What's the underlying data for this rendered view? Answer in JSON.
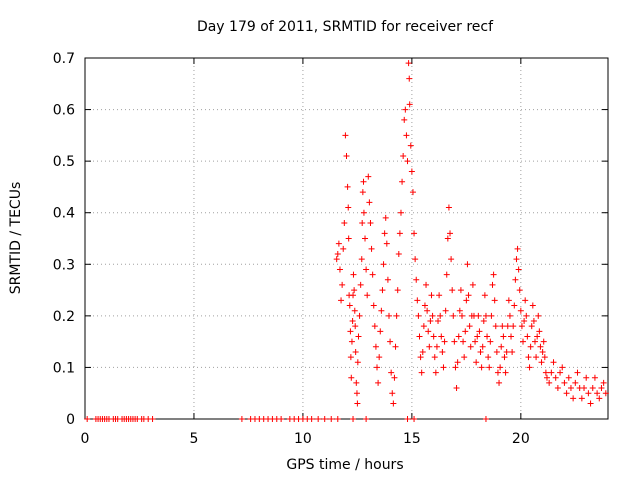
{
  "chart_data": {
    "type": "scatter",
    "title": "Day 179 of 2011, SRMTID for receiver recf",
    "xlabel": "GPS time / hours",
    "ylabel": "SRMTID / TECUs",
    "xlim": [
      0,
      24
    ],
    "ylim": [
      0,
      0.7
    ],
    "xticks": [
      "0",
      "5",
      "10",
      "15",
      "20"
    ],
    "xtick_values": [
      0,
      5,
      10,
      15,
      20
    ],
    "yticks": [
      "0",
      "0.1",
      "0.2",
      "0.3",
      "0.4",
      "0.5",
      "0.6",
      "0.7"
    ],
    "ytick_values": [
      0,
      0.1,
      0.2,
      0.3,
      0.4,
      0.5,
      0.6,
      0.7
    ],
    "grid": true,
    "marker": "+",
    "series": [
      {
        "name": "SRMTID",
        "color": "#ff0000",
        "points": [
          [
            0.1,
            0.0
          ],
          [
            0.5,
            0.0
          ],
          [
            0.6,
            0.0
          ],
          [
            0.7,
            0.0
          ],
          [
            0.8,
            0.0
          ],
          [
            0.9,
            0.0
          ],
          [
            1.0,
            0.0
          ],
          [
            1.1,
            0.0
          ],
          [
            1.3,
            0.0
          ],
          [
            1.4,
            0.0
          ],
          [
            1.5,
            0.0
          ],
          [
            1.7,
            0.0
          ],
          [
            1.8,
            0.0
          ],
          [
            1.9,
            0.0
          ],
          [
            2.0,
            0.0
          ],
          [
            2.1,
            0.0
          ],
          [
            2.2,
            0.0
          ],
          [
            2.3,
            0.0
          ],
          [
            2.4,
            0.0
          ],
          [
            2.6,
            0.0
          ],
          [
            2.7,
            0.0
          ],
          [
            2.9,
            0.0
          ],
          [
            3.1,
            0.0
          ],
          [
            7.2,
            0.0
          ],
          [
            7.6,
            0.0
          ],
          [
            7.8,
            0.0
          ],
          [
            8.0,
            0.0
          ],
          [
            8.2,
            0.0
          ],
          [
            8.4,
            0.0
          ],
          [
            8.6,
            0.0
          ],
          [
            8.8,
            0.0
          ],
          [
            9.0,
            0.0
          ],
          [
            9.4,
            0.0
          ],
          [
            9.6,
            0.0
          ],
          [
            9.8,
            0.0
          ],
          [
            10.0,
            0.0
          ],
          [
            10.2,
            0.0
          ],
          [
            10.4,
            0.0
          ],
          [
            10.7,
            0.0
          ],
          [
            11.0,
            0.0
          ],
          [
            11.3,
            0.0
          ],
          [
            11.6,
            0.0
          ],
          [
            12.3,
            0.0
          ],
          [
            12.9,
            0.0
          ],
          [
            14.8,
            0.0
          ],
          [
            15.1,
            0.0
          ],
          [
            18.4,
            0.0
          ],
          [
            11.55,
            0.31
          ],
          [
            11.6,
            0.32
          ],
          [
            11.65,
            0.34
          ],
          [
            11.7,
            0.29
          ],
          [
            11.75,
            0.23
          ],
          [
            11.8,
            0.26
          ],
          [
            11.85,
            0.33
          ],
          [
            11.9,
            0.38
          ],
          [
            11.95,
            0.55
          ],
          [
            12.0,
            0.51
          ],
          [
            12.05,
            0.45
          ],
          [
            12.08,
            0.41
          ],
          [
            12.1,
            0.35
          ],
          [
            12.12,
            0.24
          ],
          [
            12.15,
            0.22
          ],
          [
            12.18,
            0.17
          ],
          [
            12.2,
            0.12
          ],
          [
            12.22,
            0.08
          ],
          [
            12.25,
            0.15
          ],
          [
            12.28,
            0.19
          ],
          [
            12.3,
            0.24
          ],
          [
            12.32,
            0.28
          ],
          [
            12.35,
            0.25
          ],
          [
            12.38,
            0.21
          ],
          [
            12.4,
            0.18
          ],
          [
            12.42,
            0.13
          ],
          [
            12.45,
            0.07
          ],
          [
            12.48,
            0.05
          ],
          [
            12.5,
            0.03
          ],
          [
            12.52,
            0.11
          ],
          [
            12.55,
            0.16
          ],
          [
            12.6,
            0.2
          ],
          [
            12.65,
            0.26
          ],
          [
            12.7,
            0.31
          ],
          [
            12.72,
            0.38
          ],
          [
            12.75,
            0.44
          ],
          [
            12.78,
            0.46
          ],
          [
            12.8,
            0.4
          ],
          [
            12.85,
            0.35
          ],
          [
            12.9,
            0.29
          ],
          [
            12.95,
            0.24
          ],
          [
            13.0,
            0.47
          ],
          [
            13.05,
            0.42
          ],
          [
            13.1,
            0.38
          ],
          [
            13.15,
            0.33
          ],
          [
            13.2,
            0.28
          ],
          [
            13.25,
            0.22
          ],
          [
            13.3,
            0.18
          ],
          [
            13.35,
            0.14
          ],
          [
            13.4,
            0.1
          ],
          [
            13.45,
            0.07
          ],
          [
            13.5,
            0.12
          ],
          [
            13.55,
            0.17
          ],
          [
            13.6,
            0.21
          ],
          [
            13.65,
            0.25
          ],
          [
            13.7,
            0.3
          ],
          [
            13.75,
            0.36
          ],
          [
            13.8,
            0.39
          ],
          [
            13.85,
            0.34
          ],
          [
            13.9,
            0.27
          ],
          [
            13.95,
            0.2
          ],
          [
            14.0,
            0.15
          ],
          [
            14.05,
            0.09
          ],
          [
            14.1,
            0.05
          ],
          [
            14.15,
            0.03
          ],
          [
            14.2,
            0.08
          ],
          [
            14.25,
            0.14
          ],
          [
            14.3,
            0.2
          ],
          [
            14.35,
            0.25
          ],
          [
            14.4,
            0.32
          ],
          [
            14.45,
            0.36
          ],
          [
            14.5,
            0.4
          ],
          [
            14.55,
            0.46
          ],
          [
            14.6,
            0.51
          ],
          [
            14.65,
            0.58
          ],
          [
            14.7,
            0.6
          ],
          [
            14.75,
            0.55
          ],
          [
            14.8,
            0.5
          ],
          [
            14.85,
            0.69
          ],
          [
            14.88,
            0.66
          ],
          [
            14.9,
            0.61
          ],
          [
            14.95,
            0.53
          ],
          [
            15.0,
            0.48
          ],
          [
            15.05,
            0.44
          ],
          [
            15.1,
            0.36
          ],
          [
            15.15,
            0.31
          ],
          [
            15.2,
            0.27
          ],
          [
            15.25,
            0.23
          ],
          [
            15.3,
            0.2
          ],
          [
            15.35,
            0.16
          ],
          [
            15.4,
            0.12
          ],
          [
            15.45,
            0.09
          ],
          [
            15.5,
            0.13
          ],
          [
            15.55,
            0.18
          ],
          [
            15.6,
            0.22
          ],
          [
            15.65,
            0.26
          ],
          [
            15.7,
            0.21
          ],
          [
            15.75,
            0.17
          ],
          [
            15.8,
            0.14
          ],
          [
            15.85,
            0.19
          ],
          [
            15.9,
            0.24
          ],
          [
            15.95,
            0.2
          ],
          [
            16.0,
            0.16
          ],
          [
            16.05,
            0.12
          ],
          [
            16.1,
            0.09
          ],
          [
            16.15,
            0.14
          ],
          [
            16.2,
            0.19
          ],
          [
            16.25,
            0.24
          ],
          [
            16.3,
            0.2
          ],
          [
            16.35,
            0.16
          ],
          [
            16.4,
            0.13
          ],
          [
            16.45,
            0.1
          ],
          [
            16.5,
            0.15
          ],
          [
            16.55,
            0.21
          ],
          [
            16.6,
            0.28
          ],
          [
            16.65,
            0.35
          ],
          [
            16.7,
            0.41
          ],
          [
            16.75,
            0.36
          ],
          [
            16.8,
            0.31
          ],
          [
            16.85,
            0.25
          ],
          [
            16.9,
            0.2
          ],
          [
            16.95,
            0.15
          ],
          [
            17.0,
            0.1
          ],
          [
            17.05,
            0.06
          ],
          [
            17.1,
            0.11
          ],
          [
            17.15,
            0.16
          ],
          [
            17.2,
            0.21
          ],
          [
            17.25,
            0.25
          ],
          [
            17.3,
            0.2
          ],
          [
            17.35,
            0.15
          ],
          [
            17.4,
            0.12
          ],
          [
            17.45,
            0.17
          ],
          [
            17.5,
            0.23
          ],
          [
            17.55,
            0.3
          ],
          [
            17.6,
            0.24
          ],
          [
            17.65,
            0.18
          ],
          [
            17.7,
            0.14
          ],
          [
            17.75,
            0.2
          ],
          [
            17.8,
            0.26
          ],
          [
            17.85,
            0.2
          ],
          [
            17.9,
            0.15
          ],
          [
            17.95,
            0.11
          ],
          [
            18.0,
            0.16
          ],
          [
            18.05,
            0.2
          ],
          [
            18.1,
            0.17
          ],
          [
            18.15,
            0.13
          ],
          [
            18.2,
            0.1
          ],
          [
            18.25,
            0.14
          ],
          [
            18.3,
            0.19
          ],
          [
            18.35,
            0.24
          ],
          [
            18.4,
            0.2
          ],
          [
            18.45,
            0.16
          ],
          [
            18.5,
            0.12
          ],
          [
            18.55,
            0.1
          ],
          [
            18.6,
            0.15
          ],
          [
            18.65,
            0.2
          ],
          [
            18.7,
            0.26
          ],
          [
            18.75,
            0.28
          ],
          [
            18.8,
            0.23
          ],
          [
            18.85,
            0.18
          ],
          [
            18.9,
            0.13
          ],
          [
            18.95,
            0.09
          ],
          [
            19.0,
            0.07
          ],
          [
            19.05,
            0.1
          ],
          [
            19.1,
            0.14
          ],
          [
            19.15,
            0.18
          ],
          [
            19.2,
            0.16
          ],
          [
            19.25,
            0.12
          ],
          [
            19.3,
            0.09
          ],
          [
            19.35,
            0.13
          ],
          [
            19.4,
            0.18
          ],
          [
            19.45,
            0.23
          ],
          [
            19.5,
            0.2
          ],
          [
            19.55,
            0.16
          ],
          [
            19.6,
            0.13
          ],
          [
            19.65,
            0.18
          ],
          [
            19.7,
            0.22
          ],
          [
            19.75,
            0.27
          ],
          [
            19.8,
            0.31
          ],
          [
            19.85,
            0.33
          ],
          [
            19.9,
            0.29
          ],
          [
            19.95,
            0.25
          ],
          [
            20.0,
            0.21
          ],
          [
            20.05,
            0.18
          ],
          [
            20.1,
            0.15
          ],
          [
            20.15,
            0.19
          ],
          [
            20.2,
            0.23
          ],
          [
            20.25,
            0.2
          ],
          [
            20.3,
            0.16
          ],
          [
            20.35,
            0.12
          ],
          [
            20.4,
            0.1
          ],
          [
            20.45,
            0.14
          ],
          [
            20.5,
            0.18
          ],
          [
            20.55,
            0.22
          ],
          [
            20.6,
            0.19
          ],
          [
            20.65,
            0.15
          ],
          [
            20.7,
            0.12
          ],
          [
            20.75,
            0.16
          ],
          [
            20.8,
            0.2
          ],
          [
            20.85,
            0.17
          ],
          [
            20.9,
            0.14
          ],
          [
            20.95,
            0.11
          ],
          [
            21.0,
            0.13
          ],
          [
            21.05,
            0.15
          ],
          [
            21.1,
            0.12
          ],
          [
            21.15,
            0.09
          ],
          [
            21.2,
            0.08
          ],
          [
            21.3,
            0.07
          ],
          [
            21.4,
            0.09
          ],
          [
            21.5,
            0.11
          ],
          [
            21.6,
            0.08
          ],
          [
            21.7,
            0.06
          ],
          [
            21.8,
            0.09
          ],
          [
            21.9,
            0.1
          ],
          [
            22.0,
            0.07
          ],
          [
            22.1,
            0.05
          ],
          [
            22.2,
            0.08
          ],
          [
            22.3,
            0.06
          ],
          [
            22.4,
            0.04
          ],
          [
            22.5,
            0.07
          ],
          [
            22.6,
            0.09
          ],
          [
            22.7,
            0.06
          ],
          [
            22.8,
            0.04
          ],
          [
            22.9,
            0.06
          ],
          [
            23.0,
            0.08
          ],
          [
            23.1,
            0.05
          ],
          [
            23.2,
            0.03
          ],
          [
            23.3,
            0.06
          ],
          [
            23.4,
            0.08
          ],
          [
            23.5,
            0.05
          ],
          [
            23.6,
            0.04
          ],
          [
            23.7,
            0.06
          ],
          [
            23.8,
            0.07
          ],
          [
            23.9,
            0.05
          ]
        ]
      }
    ]
  }
}
